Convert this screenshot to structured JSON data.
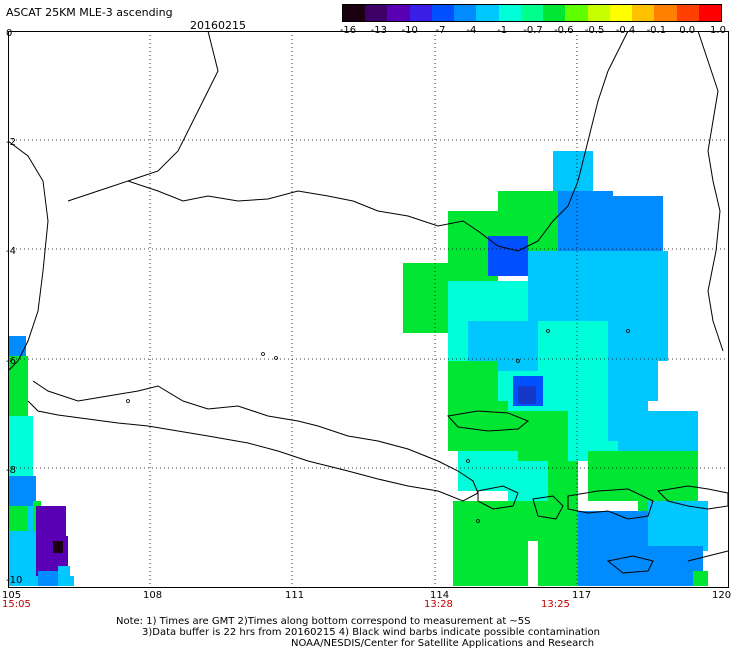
{
  "header": {
    "title": "ASCAT 25KM MLE-3 ascending",
    "date": "20160215"
  },
  "colorbar": {
    "labels": [
      "-16",
      "-13",
      "-10",
      "-7",
      "-4",
      "-1",
      "-0.7",
      "-0.6",
      "-0.5",
      "-0.4",
      "-0.1",
      "0.0",
      "1.0"
    ],
    "colors": [
      "#1a0010",
      "#3d0066",
      "#5a00b4",
      "#3a1ee6",
      "#0050ff",
      "#008cff",
      "#00c8ff",
      "#00ffd8",
      "#00ff8c",
      "#00e632",
      "#60ff00",
      "#c8ff00",
      "#ffff00",
      "#ffc000",
      "#ff8000",
      "#ff4000",
      "#ff0000"
    ]
  },
  "axes": {
    "x_ticks": [
      "105",
      "108",
      "111",
      "114",
      "117",
      "120"
    ],
    "y_ticks": [
      "0",
      "-2",
      "-4",
      "-6",
      "-8",
      "-10"
    ]
  },
  "time_labels": [
    "15:05",
    "13:28",
    "13:25"
  ],
  "notes": {
    "line1": "Note: 1) Times are GMT 2)Times along bottom correspond to measurement at ~5S",
    "line2": "3)Data buffer is 22 hrs from 20160215 4) Black wind barbs indicate possible contamination",
    "line3": "NOAA/NESDIS/Center for Satellite Applications and Research"
  }
}
